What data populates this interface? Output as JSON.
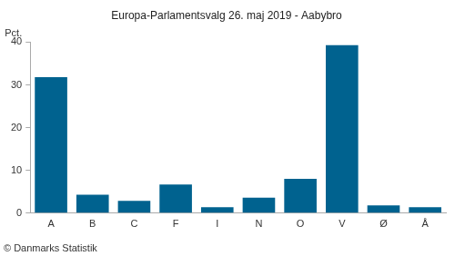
{
  "chart_data": {
    "type": "bar",
    "title": "Europa-Parlamentsvalg 26. maj 2019 - Aabybro",
    "y_label": "Pct.",
    "source": "© Danmarks Statistik",
    "categories": [
      "A",
      "B",
      "C",
      "F",
      "I",
      "N",
      "O",
      "V",
      "Ø",
      "Å"
    ],
    "values": [
      31.8,
      4.3,
      2.9,
      6.7,
      1.4,
      3.6,
      8.0,
      39.3,
      1.8,
      1.4
    ],
    "color": "#00628f",
    "ylim": [
      0,
      40
    ],
    "yticks": [
      0,
      10,
      20,
      30,
      40
    ],
    "grid": false
  }
}
